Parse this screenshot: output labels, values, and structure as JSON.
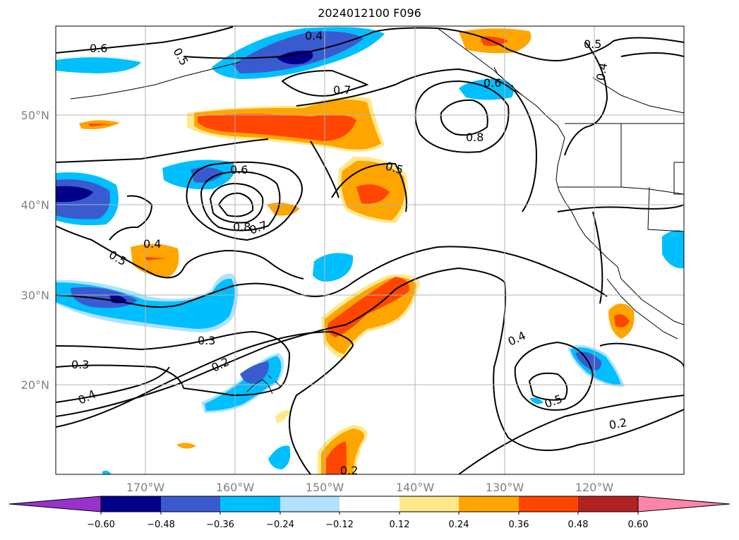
{
  "title": "2024012100 F096",
  "map": {
    "lat_ticks": [
      "50°N",
      "40°N",
      "30°N",
      "20°N"
    ],
    "lon_ticks": [
      "170°W",
      "160°W",
      "150°W",
      "140°W",
      "130°W",
      "120°W"
    ]
  },
  "contour_labels": [
    "0.6",
    "0.4",
    "0.5",
    "0.7",
    "0.6",
    "0.8",
    "0.5",
    "0.5",
    "0.4",
    "0.6",
    "0.8",
    "0.7",
    "0.4",
    "0.5",
    "0.3",
    "0.3",
    "0.2",
    "0.4",
    "0.4",
    "0.5",
    "0.2",
    "0.2"
  ],
  "colorbar": {
    "ticks": [
      "−0.60",
      "−0.48",
      "−0.36",
      "−0.24",
      "−0.12",
      "0.12",
      "0.24",
      "0.36",
      "0.48",
      "0.60"
    ],
    "colors": [
      "#9932cc",
      "#00008b",
      "#3a5bd0",
      "#00bfff",
      "#b0e2ff",
      "#ffffff",
      "#ffe88a",
      "#ffa500",
      "#ff4500",
      "#b22222",
      "#ff85a8"
    ]
  }
}
